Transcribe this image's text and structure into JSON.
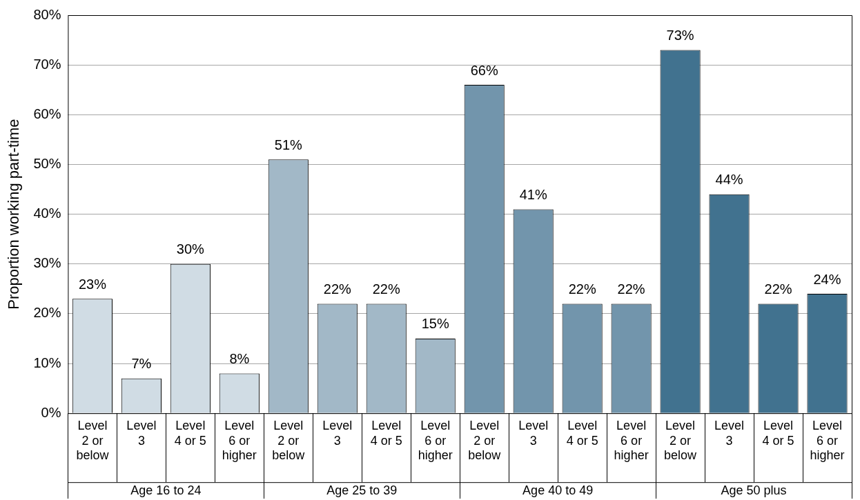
{
  "chart_data": {
    "type": "bar",
    "stacked": true,
    "ylabel": "Proportion working part-time",
    "categories": [
      "Level 2 or below",
      "Level 3",
      "Level 4 or 5",
      "Level 6 or higher",
      "Level 2 or below",
      "Level 3",
      "Level 4 or 5",
      "Level 6 or higher",
      "Level 2 or below",
      "Level 3",
      "Level 4 or 5",
      "Level 6 or higher",
      "Level 2 or below",
      "Level 3",
      "Level 4 or 5",
      "Level 6 or higher"
    ],
    "ylim": [
      0,
      80
    ],
    "yticks": [
      {
        "value": 0,
        "label": "0%"
      },
      {
        "value": 10,
        "label": "10%"
      },
      {
        "value": 20,
        "label": "20%"
      },
      {
        "value": 30,
        "label": "30%"
      },
      {
        "value": 40,
        "label": "40%"
      },
      {
        "value": 50,
        "label": "50%"
      },
      {
        "value": 60,
        "label": "60%"
      },
      {
        "value": 70,
        "label": "70%"
      },
      {
        "value": 80,
        "label": "80%"
      }
    ],
    "grid": "y",
    "series": [
      {
        "name": "Age 16 to 24",
        "color": "#d0dce4",
        "values": [
          23,
          7,
          30,
          8,
          null,
          null,
          null,
          null,
          null,
          null,
          null,
          null,
          null,
          null,
          null,
          null
        ],
        "value_labels": [
          "23%",
          "7%",
          "30%",
          "8%",
          null,
          null,
          null,
          null,
          null,
          null,
          null,
          null,
          null,
          null,
          null,
          null
        ]
      },
      {
        "name": "Age 25 to 39",
        "color": "#a2b8c7",
        "values": [
          null,
          null,
          null,
          null,
          51,
          22,
          22,
          15,
          null,
          null,
          null,
          null,
          null,
          null,
          null,
          null
        ],
        "value_labels": [
          null,
          null,
          null,
          null,
          "51%",
          "22%",
          "22%",
          "15%",
          null,
          null,
          null,
          null,
          null,
          null,
          null,
          null
        ]
      },
      {
        "name": "Age 40 to 49",
        "color": "#7295ac",
        "values": [
          null,
          null,
          null,
          null,
          null,
          null,
          null,
          null,
          66,
          41,
          22,
          22,
          null,
          null,
          null,
          null
        ],
        "value_labels": [
          null,
          null,
          null,
          null,
          null,
          null,
          null,
          null,
          "66%",
          "41%",
          "22%",
          "22%",
          null,
          null,
          null,
          null
        ]
      },
      {
        "name": "Age 50 plus",
        "color": "#41728f",
        "values": [
          null,
          null,
          null,
          null,
          null,
          null,
          null,
          null,
          null,
          null,
          null,
          null,
          73,
          44,
          22,
          24
        ],
        "value_labels": [
          null,
          null,
          null,
          null,
          null,
          null,
          null,
          null,
          null,
          null,
          null,
          null,
          "73%",
          "44%",
          "22%",
          "24%"
        ]
      }
    ]
  }
}
